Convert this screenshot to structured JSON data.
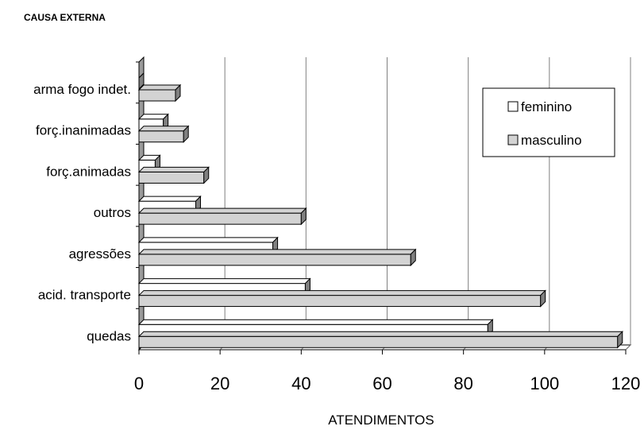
{
  "chart_data": {
    "type": "bar",
    "orientation": "horizontal",
    "title": "CAUSA EXTERNA",
    "xlabel": "ATENDIMENTOS",
    "ylabel": "",
    "categories": [
      "arma fogo indet.",
      "forç.inanimadas",
      "forç.animadas",
      "outros",
      "agressões",
      "acid. transporte",
      "quedas"
    ],
    "series": [
      {
        "name": "feminino",
        "color": "#ffffff",
        "values": [
          0,
          6,
          4,
          14,
          33,
          41,
          86
        ]
      },
      {
        "name": "masculino",
        "color": "#d3d3d3",
        "values": [
          9,
          11,
          16,
          40,
          67,
          99,
          118
        ]
      }
    ],
    "xlim": [
      0,
      120
    ],
    "xticks": [
      0,
      20,
      40,
      60,
      80,
      100,
      120
    ],
    "grid": true,
    "legend_position": "top-right"
  }
}
